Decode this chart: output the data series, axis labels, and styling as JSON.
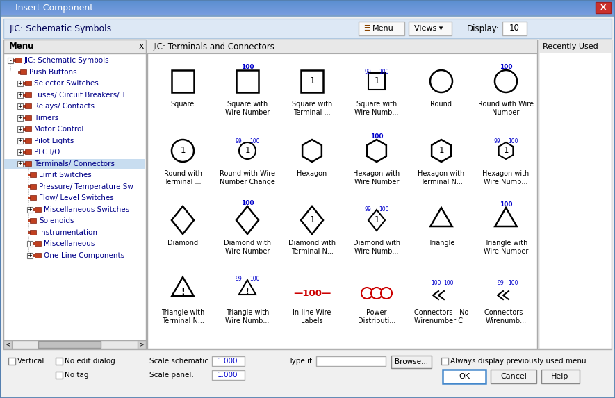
{
  "title": "Insert Component",
  "header_text": "JIC: Schematic Symbols",
  "panel_title": "JIC: Terminals and Connectors",
  "recently_used": "Recently Used",
  "menu_label": "Menu",
  "display_label": "Display:",
  "display_value": "10",
  "bg_color": "#f0f0f0",
  "titlebar_bg": "#6a9fd8",
  "titlebar_text": "#ffffff",
  "close_btn_color": "#c0392b",
  "header_bg": "#e8f0f8",
  "panel_header_bg": "#e0e8f0",
  "white": "#ffffff",
  "light_gray": "#f5f5f5",
  "mid_gray": "#e0e0e0",
  "dark_gray": "#888888",
  "border_gray": "#aaaaaa",
  "text_black": "#000000",
  "text_blue": "#0000aa",
  "wire_num_color": "#0000cc",
  "selected_bg": "#c8ddf0",
  "inline_wire_color": "#cc0000",
  "power_dist_color": "#cc0000",
  "ok_border": "#4488cc",
  "tree_items": [
    {
      "indent": 0,
      "has_expand": true,
      "expanded": true,
      "label": "JIC: Schematic Symbols"
    },
    {
      "indent": 1,
      "has_expand": false,
      "expanded": false,
      "label": "Push Buttons"
    },
    {
      "indent": 1,
      "has_expand": true,
      "expanded": false,
      "label": "Selector Switches"
    },
    {
      "indent": 1,
      "has_expand": true,
      "expanded": false,
      "label": "Fuses/ Circuit Breakers/ T"
    },
    {
      "indent": 1,
      "has_expand": true,
      "expanded": false,
      "label": "Relays/ Contacts"
    },
    {
      "indent": 1,
      "has_expand": true,
      "expanded": false,
      "label": "Timers"
    },
    {
      "indent": 1,
      "has_expand": true,
      "expanded": false,
      "label": "Motor Control"
    },
    {
      "indent": 1,
      "has_expand": true,
      "expanded": false,
      "label": "Pilot Lights"
    },
    {
      "indent": 1,
      "has_expand": true,
      "expanded": false,
      "label": "PLC I/O"
    },
    {
      "indent": 1,
      "has_expand": true,
      "expanded": false,
      "label": "Terminals/ Connectors",
      "selected": true
    },
    {
      "indent": 2,
      "has_expand": false,
      "expanded": false,
      "label": "Limit Switches"
    },
    {
      "indent": 2,
      "has_expand": false,
      "expanded": false,
      "label": "Pressure/ Temperature Sw"
    },
    {
      "indent": 2,
      "has_expand": false,
      "expanded": false,
      "label": "Flow/ Level Switches"
    },
    {
      "indent": 2,
      "has_expand": true,
      "expanded": false,
      "label": "Miscellaneous Switches"
    },
    {
      "indent": 2,
      "has_expand": false,
      "expanded": false,
      "label": "Solenoids"
    },
    {
      "indent": 2,
      "has_expand": false,
      "expanded": false,
      "label": "Instrumentation"
    },
    {
      "indent": 2,
      "has_expand": true,
      "expanded": false,
      "label": "Miscellaneous"
    },
    {
      "indent": 2,
      "has_expand": true,
      "expanded": false,
      "label": "One-Line Components"
    }
  ],
  "symbols": [
    {
      "row": 0,
      "col": 0,
      "type": "square",
      "label": "Square"
    },
    {
      "row": 0,
      "col": 1,
      "type": "square_num",
      "label": "Square with\nWire Number"
    },
    {
      "row": 0,
      "col": 2,
      "type": "square_term",
      "label": "Square with\nTerminal ..."
    },
    {
      "row": 0,
      "col": 3,
      "type": "square_num_term",
      "label": "Square with\nWire Numb..."
    },
    {
      "row": 0,
      "col": 4,
      "type": "circle",
      "label": "Round"
    },
    {
      "row": 0,
      "col": 5,
      "type": "circle_num",
      "label": "Round with Wire\nNumber"
    },
    {
      "row": 1,
      "col": 0,
      "type": "circle_term",
      "label": "Round with\nTerminal ..."
    },
    {
      "row": 1,
      "col": 1,
      "type": "circle_num_term",
      "label": "Round with Wire\nNumber Change"
    },
    {
      "row": 1,
      "col": 2,
      "type": "hexagon",
      "label": "Hexagon"
    },
    {
      "row": 1,
      "col": 3,
      "type": "hexagon_num",
      "label": "Hexagon with\nWire Number"
    },
    {
      "row": 1,
      "col": 4,
      "type": "hexagon_term",
      "label": "Hexagon with\nTerminal N..."
    },
    {
      "row": 1,
      "col": 5,
      "type": "hexagon_num_term",
      "label": "Hexagon with\nWire Numb..."
    },
    {
      "row": 2,
      "col": 0,
      "type": "diamond",
      "label": "Diamond"
    },
    {
      "row": 2,
      "col": 1,
      "type": "diamond_num",
      "label": "Diamond with\nWire Number"
    },
    {
      "row": 2,
      "col": 2,
      "type": "diamond_term",
      "label": "Diamond with\nTerminal N..."
    },
    {
      "row": 2,
      "col": 3,
      "type": "diamond_num_term",
      "label": "Diamond with\nWire Numb..."
    },
    {
      "row": 2,
      "col": 4,
      "type": "triangle",
      "label": "Triangle"
    },
    {
      "row": 2,
      "col": 5,
      "type": "triangle_num",
      "label": "Triangle with\nWire Number"
    },
    {
      "row": 3,
      "col": 0,
      "type": "triangle_term",
      "label": "Triangle with\nTerminal N..."
    },
    {
      "row": 3,
      "col": 1,
      "type": "triangle_num_term",
      "label": "Triangle with\nWire Numb..."
    },
    {
      "row": 3,
      "col": 2,
      "type": "inline_wire",
      "label": "In-line Wire\nLabels"
    },
    {
      "row": 3,
      "col": 3,
      "type": "power_dist",
      "label": "Power\nDistributi..."
    },
    {
      "row": 3,
      "col": 4,
      "type": "connector_no",
      "label": "Connectors - No\nWirenumber C..."
    },
    {
      "row": 3,
      "col": 5,
      "type": "connector_wire",
      "label": "Connectors -\nWirenumb..."
    }
  ],
  "bottom": {
    "vertical_cb": "Vertical",
    "no_edit_cb": "No edit dialog",
    "no_tag_cb": "No tag",
    "scale_sch_lbl": "Scale schematic:",
    "scale_sch_val": "1.000",
    "scale_pan_lbl": "Scale panel:",
    "scale_pan_val": "1.000",
    "type_it_lbl": "Type it:",
    "browse_btn": "Browse...",
    "always_cb": "Always display previously used menu",
    "ok_btn": "OK",
    "cancel_btn": "Cancel",
    "help_btn": "Help"
  }
}
